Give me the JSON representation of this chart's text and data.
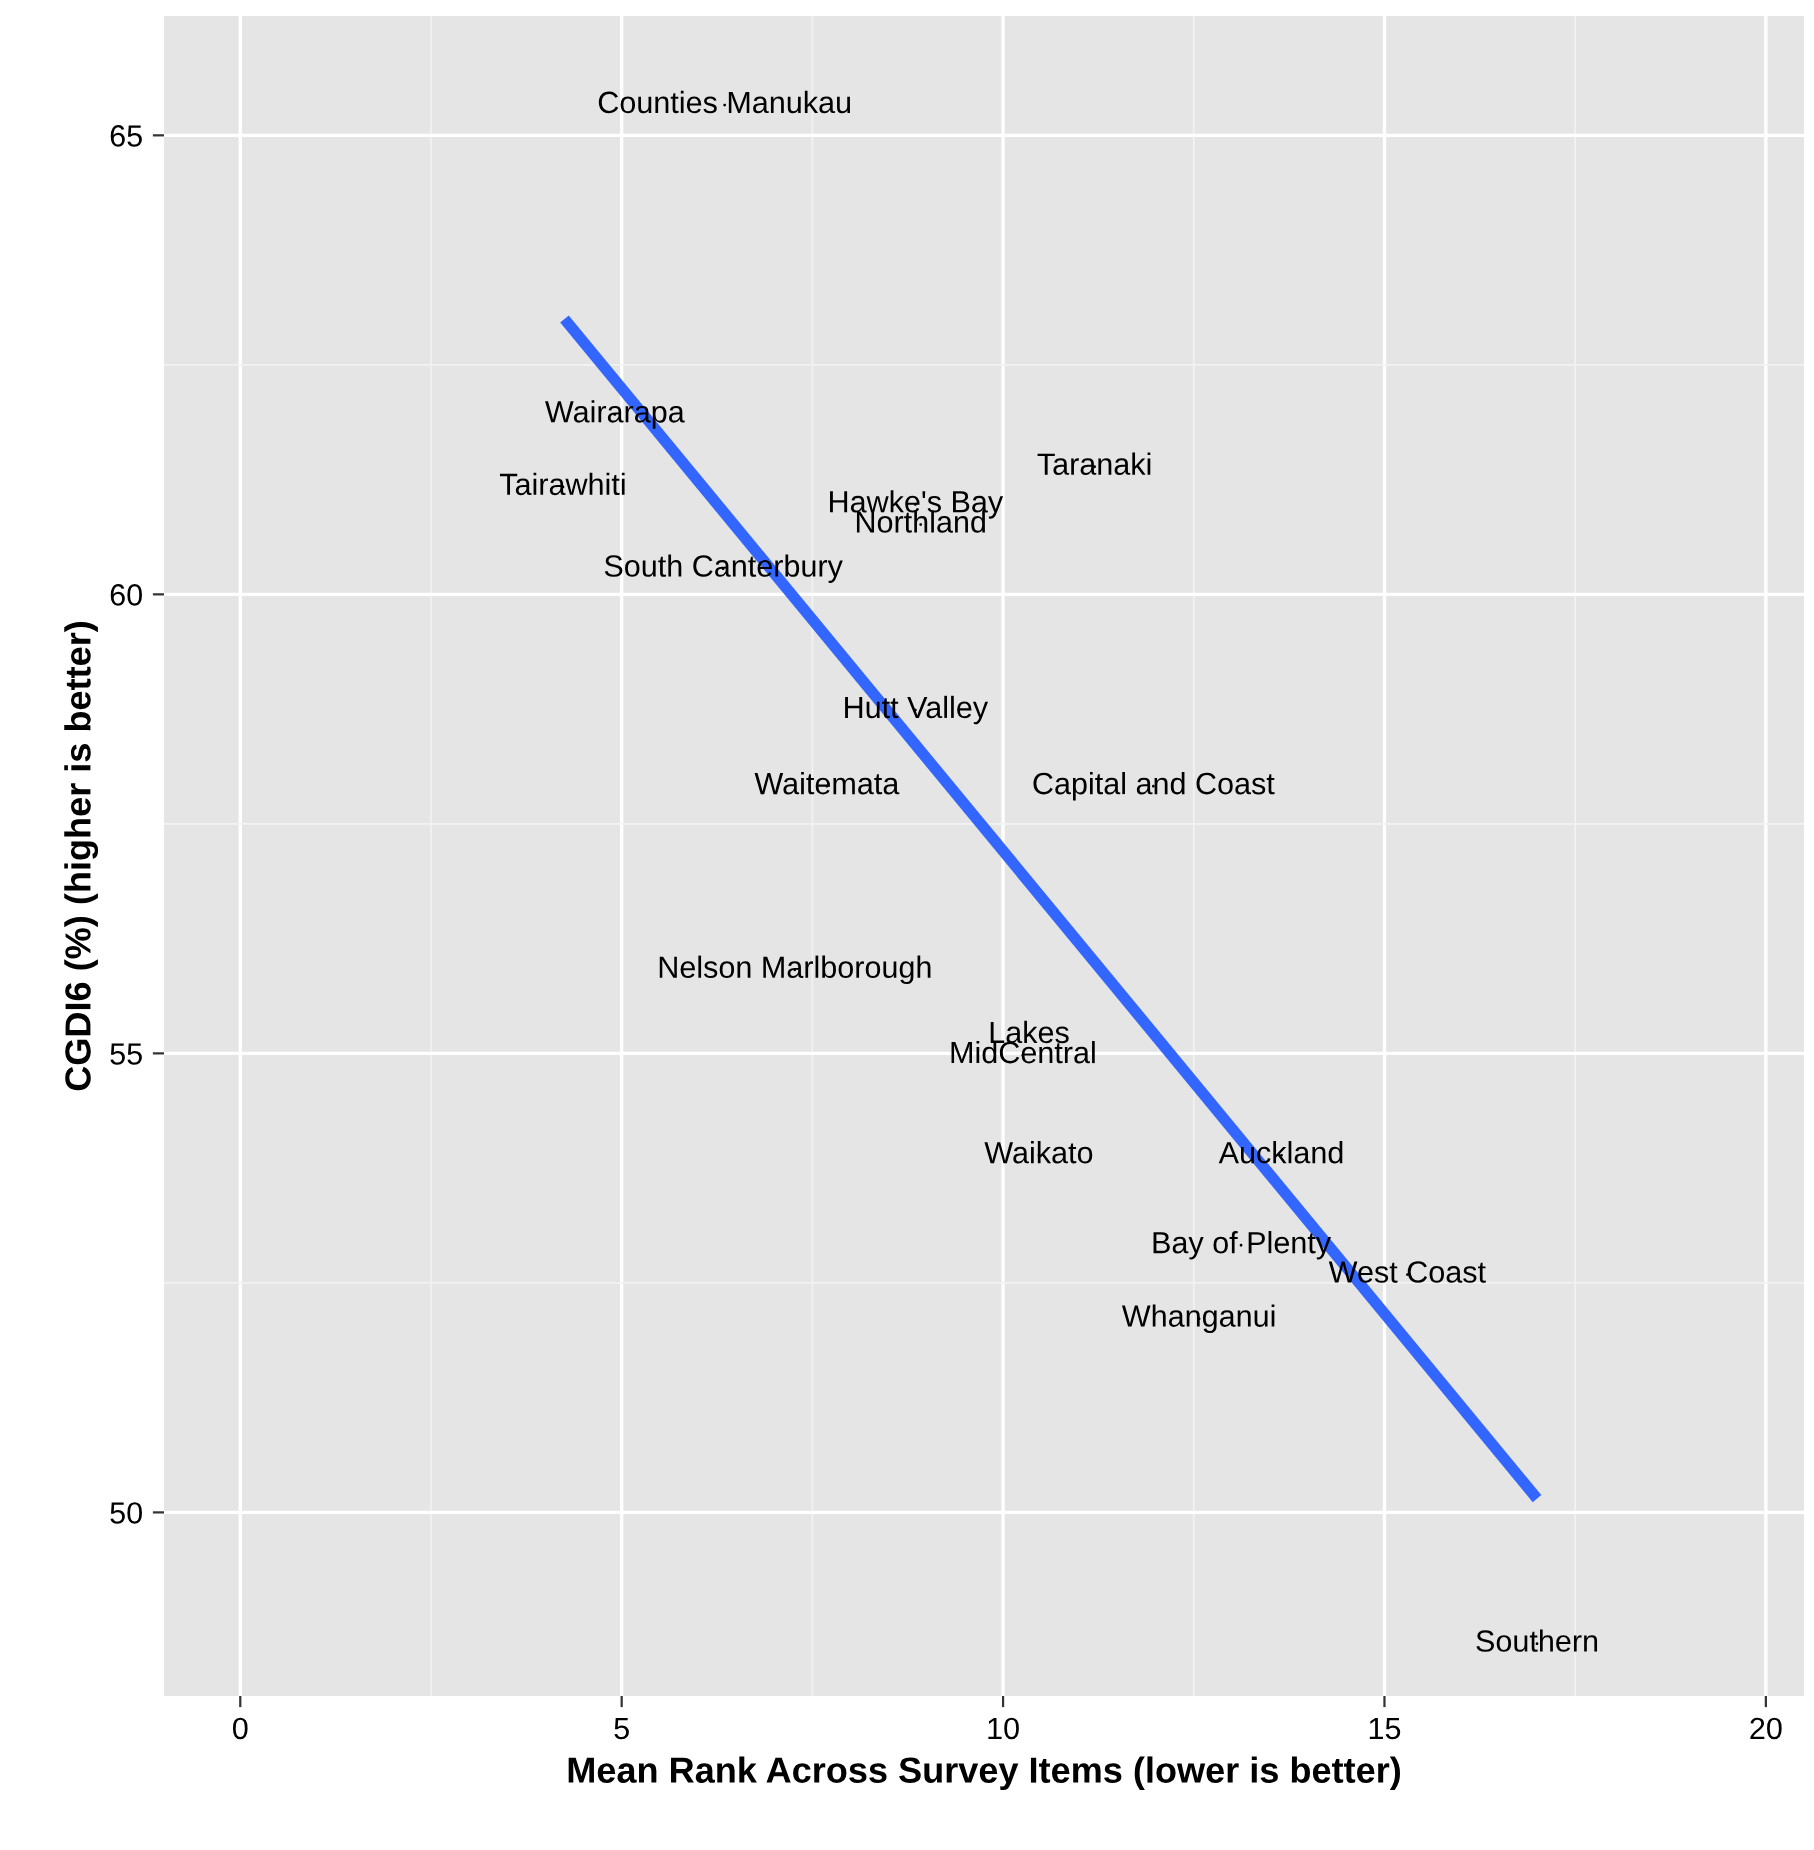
{
  "chart_data": {
    "type": "scatter",
    "xlabel": "Mean Rank Across Survey Items (lower is better)",
    "ylabel": "CGDI6 (%) (higher is better)",
    "xlim": [
      -1.0,
      20.5
    ],
    "ylim": [
      48.0,
      66.3
    ],
    "xticks": [
      0,
      5,
      10,
      15,
      20
    ],
    "yticks": [
      50,
      55,
      60,
      65
    ],
    "grid": true,
    "marker": "none",
    "series": [
      {
        "x": [
          6.35,
          4.91,
          4.23,
          11.2,
          8.85,
          8.92,
          6.33,
          8.85,
          7.69,
          11.97,
          7.27,
          10.34,
          10.26,
          10.47,
          13.65,
          13.12,
          15.3,
          12.57,
          17.0
        ],
        "values": [
          65.33,
          61.96,
          61.17,
          61.39,
          60.98,
          60.76,
          60.28,
          58.74,
          57.91,
          57.91,
          55.91,
          55.2,
          54.98,
          53.89,
          53.89,
          52.91,
          52.59,
          52.11,
          48.57
        ],
        "value_labels": [
          "Counties Manukau",
          "Wairarapa",
          "Tairawhiti",
          "Taranaki",
          "Hawke's Bay",
          "Northland",
          "South Canterbury",
          "Hutt Valley",
          "Waitemata",
          "Capital and Coast",
          "Nelson Marlborough",
          "Lakes",
          "MidCentral",
          "Waikato",
          "Auckland",
          "Bay of Plenty",
          "West Coast",
          "Whanganui",
          "Southern"
        ]
      },
      {
        "type": "line",
        "color": "#3366ff",
        "x": [
          4.25,
          17.0
        ],
        "values": [
          63.0,
          50.15
        ]
      }
    ]
  }
}
